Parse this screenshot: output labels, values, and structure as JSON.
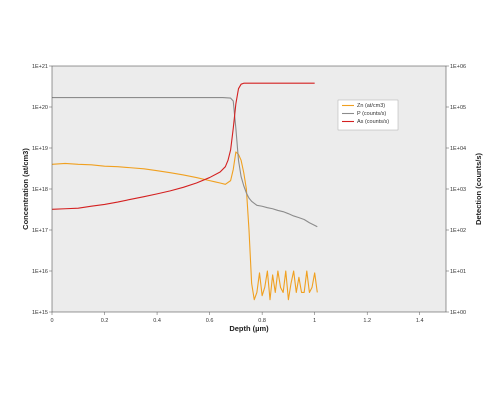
{
  "chart_data": {
    "type": "line",
    "title": "",
    "xlabel": "Depth (µm)",
    "ylabel_left": "Concentration (at/cm3)",
    "ylabel_right": "Detection (counts/s)",
    "xlim": [
      0,
      1.5
    ],
    "ylim_left": [
      1000000000000000.0,
      1e+21
    ],
    "ylim_right": [
      1,
      1000000.0
    ],
    "yscale": "log",
    "grid": false,
    "legend_position": "right, inside plot",
    "x_ticks": [
      "0",
      "0.2",
      "0.4",
      "0.6",
      "0.8",
      "1",
      "1.2",
      "1.4"
    ],
    "y_left_ticks": [
      "1E+15",
      "1E+16",
      "1E+17",
      "1E+18",
      "1E+19",
      "1E+20",
      "1E+21"
    ],
    "y_right_ticks": [
      "1E+00",
      "1E+01",
      "1E+02",
      "1E+03",
      "1E+04",
      "1E+05",
      "1E+06"
    ],
    "series": [
      {
        "name": "Zn (at/cm3)",
        "axis": "left",
        "color": "#f0a020",
        "x": [
          0,
          0.05,
          0.1,
          0.15,
          0.2,
          0.25,
          0.3,
          0.35,
          0.4,
          0.45,
          0.5,
          0.55,
          0.6,
          0.62,
          0.64,
          0.66,
          0.68,
          0.69,
          0.7,
          0.71,
          0.72,
          0.73,
          0.74,
          0.75,
          0.76,
          0.77,
          0.78,
          0.79,
          0.8,
          0.81,
          0.82,
          0.83,
          0.84,
          0.85,
          0.86,
          0.87,
          0.88,
          0.89,
          0.9,
          0.91,
          0.92,
          0.93,
          0.94,
          0.95,
          0.96,
          0.97,
          0.98,
          0.99,
          1.0,
          1.01
        ],
        "y": [
          4e+18,
          4.2e+18,
          4e+18,
          3.9e+18,
          3.6e+18,
          3.5e+18,
          3.3e+18,
          3.1e+18,
          2.8e+18,
          2.5e+18,
          2.2e+18,
          1.9e+18,
          1.6e+18,
          1.5e+18,
          1.4e+18,
          1.3e+18,
          1.6e+18,
          3e+18,
          8e+18,
          7e+18,
          5e+18,
          2.5e+18,
          1e+18,
          1e+17,
          5000000000000000.0,
          2000000000000000.0,
          3000000000000000.0,
          9000000000000000.0,
          2500000000000000.0,
          4000000000000000.0,
          1e+16,
          2000000000000000.0,
          8000000000000000.0,
          3000000000000000.0,
          1e+16,
          4000000000000000.0,
          3000000000000000.0,
          1e+16,
          2000000000000000.0,
          5000000000000000.0,
          1e+16,
          3000000000000000.0,
          7000000000000000.0,
          3000000000000000.0,
          3000000000000000.0,
          1e+16,
          3000000000000000.0,
          4000000000000000.0,
          9000000000000000.0,
          3000000000000000.0
        ]
      },
      {
        "name": "P (counts/s)",
        "axis": "right",
        "color": "#8c8c8c",
        "x": [
          0,
          0.1,
          0.2,
          0.3,
          0.4,
          0.5,
          0.6,
          0.65,
          0.68,
          0.69,
          0.7,
          0.71,
          0.72,
          0.73,
          0.74,
          0.75,
          0.76,
          0.78,
          0.8,
          0.82,
          0.84,
          0.86,
          0.88,
          0.9,
          0.92,
          0.94,
          0.96,
          0.98,
          1.0,
          1.01
        ],
        "y": [
          170000,
          170000,
          170000,
          170000,
          170000,
          170000,
          170000,
          170000,
          165000,
          140000,
          30000,
          5000,
          2000,
          1200,
          800,
          600,
          500,
          400,
          380,
          350,
          330,
          300,
          280,
          250,
          220,
          200,
          180,
          150,
          130,
          120
        ]
      },
      {
        "name": "As (counts/s)",
        "axis": "right",
        "color": "#d42020",
        "x": [
          0,
          0.05,
          0.1,
          0.15,
          0.2,
          0.25,
          0.3,
          0.35,
          0.4,
          0.45,
          0.5,
          0.55,
          0.6,
          0.64,
          0.66,
          0.67,
          0.68,
          0.69,
          0.7,
          0.71,
          0.72,
          0.73,
          0.74,
          0.75,
          0.8,
          0.9,
          1.0
        ],
        "y": [
          320,
          330,
          340,
          380,
          420,
          480,
          560,
          650,
          760,
          900,
          1100,
          1400,
          1900,
          2600,
          3500,
          5000,
          9000,
          30000,
          120000,
          280000,
          360000,
          380000,
          380000,
          380000,
          380000,
          380000,
          380000
        ]
      }
    ]
  }
}
